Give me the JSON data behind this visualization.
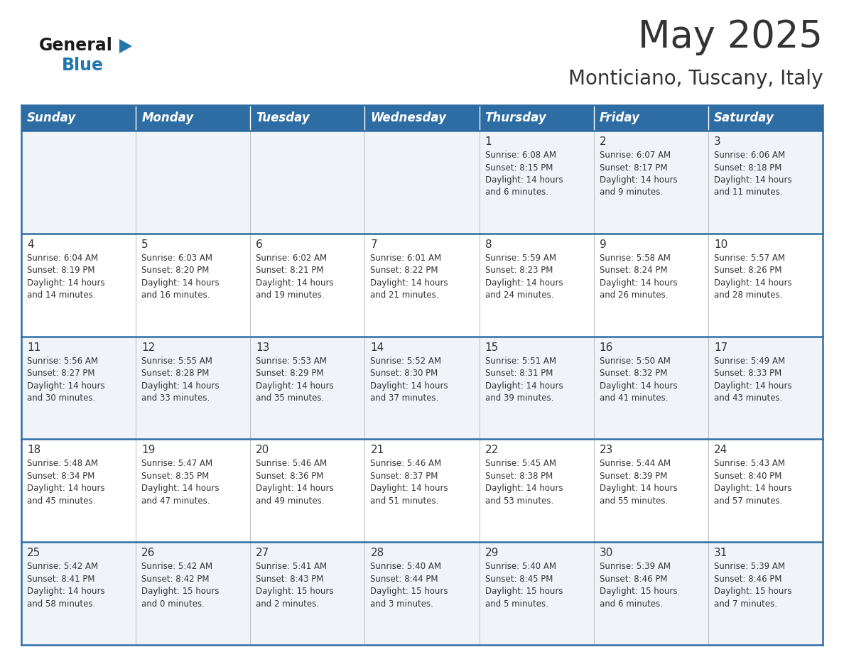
{
  "title": "May 2025",
  "subtitle": "Monticiano, Tuscany, Italy",
  "header_bg": "#2E6DA4",
  "header_text_color": "#FFFFFF",
  "cell_bg_odd": "#F0F4F8",
  "cell_bg_even": "#FFFFFF",
  "text_color": "#333333",
  "border_color": "#2E6DA4",
  "grid_color": "#BBBBBB",
  "days_of_week": [
    "Sunday",
    "Monday",
    "Tuesday",
    "Wednesday",
    "Thursday",
    "Friday",
    "Saturday"
  ],
  "weeks": [
    [
      {
        "day": "",
        "info": ""
      },
      {
        "day": "",
        "info": ""
      },
      {
        "day": "",
        "info": ""
      },
      {
        "day": "",
        "info": ""
      },
      {
        "day": "1",
        "info": "Sunrise: 6:08 AM\nSunset: 8:15 PM\nDaylight: 14 hours\nand 6 minutes."
      },
      {
        "day": "2",
        "info": "Sunrise: 6:07 AM\nSunset: 8:17 PM\nDaylight: 14 hours\nand 9 minutes."
      },
      {
        "day": "3",
        "info": "Sunrise: 6:06 AM\nSunset: 8:18 PM\nDaylight: 14 hours\nand 11 minutes."
      }
    ],
    [
      {
        "day": "4",
        "info": "Sunrise: 6:04 AM\nSunset: 8:19 PM\nDaylight: 14 hours\nand 14 minutes."
      },
      {
        "day": "5",
        "info": "Sunrise: 6:03 AM\nSunset: 8:20 PM\nDaylight: 14 hours\nand 16 minutes."
      },
      {
        "day": "6",
        "info": "Sunrise: 6:02 AM\nSunset: 8:21 PM\nDaylight: 14 hours\nand 19 minutes."
      },
      {
        "day": "7",
        "info": "Sunrise: 6:01 AM\nSunset: 8:22 PM\nDaylight: 14 hours\nand 21 minutes."
      },
      {
        "day": "8",
        "info": "Sunrise: 5:59 AM\nSunset: 8:23 PM\nDaylight: 14 hours\nand 24 minutes."
      },
      {
        "day": "9",
        "info": "Sunrise: 5:58 AM\nSunset: 8:24 PM\nDaylight: 14 hours\nand 26 minutes."
      },
      {
        "day": "10",
        "info": "Sunrise: 5:57 AM\nSunset: 8:26 PM\nDaylight: 14 hours\nand 28 minutes."
      }
    ],
    [
      {
        "day": "11",
        "info": "Sunrise: 5:56 AM\nSunset: 8:27 PM\nDaylight: 14 hours\nand 30 minutes."
      },
      {
        "day": "12",
        "info": "Sunrise: 5:55 AM\nSunset: 8:28 PM\nDaylight: 14 hours\nand 33 minutes."
      },
      {
        "day": "13",
        "info": "Sunrise: 5:53 AM\nSunset: 8:29 PM\nDaylight: 14 hours\nand 35 minutes."
      },
      {
        "day": "14",
        "info": "Sunrise: 5:52 AM\nSunset: 8:30 PM\nDaylight: 14 hours\nand 37 minutes."
      },
      {
        "day": "15",
        "info": "Sunrise: 5:51 AM\nSunset: 8:31 PM\nDaylight: 14 hours\nand 39 minutes."
      },
      {
        "day": "16",
        "info": "Sunrise: 5:50 AM\nSunset: 8:32 PM\nDaylight: 14 hours\nand 41 minutes."
      },
      {
        "day": "17",
        "info": "Sunrise: 5:49 AM\nSunset: 8:33 PM\nDaylight: 14 hours\nand 43 minutes."
      }
    ],
    [
      {
        "day": "18",
        "info": "Sunrise: 5:48 AM\nSunset: 8:34 PM\nDaylight: 14 hours\nand 45 minutes."
      },
      {
        "day": "19",
        "info": "Sunrise: 5:47 AM\nSunset: 8:35 PM\nDaylight: 14 hours\nand 47 minutes."
      },
      {
        "day": "20",
        "info": "Sunrise: 5:46 AM\nSunset: 8:36 PM\nDaylight: 14 hours\nand 49 minutes."
      },
      {
        "day": "21",
        "info": "Sunrise: 5:46 AM\nSunset: 8:37 PM\nDaylight: 14 hours\nand 51 minutes."
      },
      {
        "day": "22",
        "info": "Sunrise: 5:45 AM\nSunset: 8:38 PM\nDaylight: 14 hours\nand 53 minutes."
      },
      {
        "day": "23",
        "info": "Sunrise: 5:44 AM\nSunset: 8:39 PM\nDaylight: 14 hours\nand 55 minutes."
      },
      {
        "day": "24",
        "info": "Sunrise: 5:43 AM\nSunset: 8:40 PM\nDaylight: 14 hours\nand 57 minutes."
      }
    ],
    [
      {
        "day": "25",
        "info": "Sunrise: 5:42 AM\nSunset: 8:41 PM\nDaylight: 14 hours\nand 58 minutes."
      },
      {
        "day": "26",
        "info": "Sunrise: 5:42 AM\nSunset: 8:42 PM\nDaylight: 15 hours\nand 0 minutes."
      },
      {
        "day": "27",
        "info": "Sunrise: 5:41 AM\nSunset: 8:43 PM\nDaylight: 15 hours\nand 2 minutes."
      },
      {
        "day": "28",
        "info": "Sunrise: 5:40 AM\nSunset: 8:44 PM\nDaylight: 15 hours\nand 3 minutes."
      },
      {
        "day": "29",
        "info": "Sunrise: 5:40 AM\nSunset: 8:45 PM\nDaylight: 15 hours\nand 5 minutes."
      },
      {
        "day": "30",
        "info": "Sunrise: 5:39 AM\nSunset: 8:46 PM\nDaylight: 15 hours\nand 6 minutes."
      },
      {
        "day": "31",
        "info": "Sunrise: 5:39 AM\nSunset: 8:46 PM\nDaylight: 15 hours\nand 7 minutes."
      }
    ]
  ],
  "logo_general_color": "#1a1a1a",
  "logo_blue_color": "#2176AE",
  "logo_triangle_color": "#2176AE",
  "title_fontsize": 38,
  "subtitle_fontsize": 20,
  "header_fontsize": 12,
  "day_num_fontsize": 11,
  "info_fontsize": 8.5
}
